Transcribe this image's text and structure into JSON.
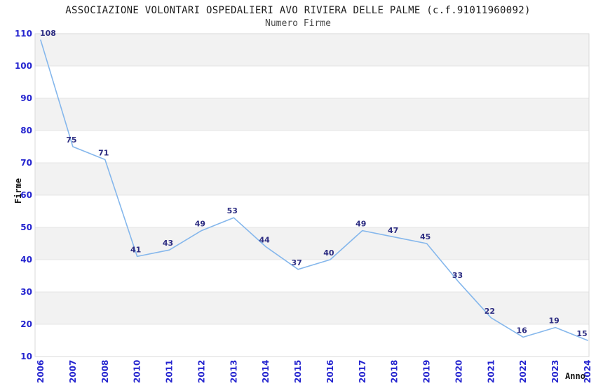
{
  "chart_data": {
    "type": "line",
    "title": "ASSOCIAZIONE VOLONTARI OSPEDALIERI AVO RIVIERA DELLE PALME (c.f.91011960092)",
    "subtitle": "Numero Firme",
    "xlabel": "Anno",
    "ylabel": "Firme",
    "categories": [
      "2006",
      "2007",
      "2008",
      "2010",
      "2011",
      "2012",
      "2013",
      "2014",
      "2015",
      "2016",
      "2017",
      "2018",
      "2019",
      "2020",
      "2021",
      "2022",
      "2023",
      "2024"
    ],
    "values": [
      108,
      75,
      71,
      41,
      43,
      49,
      53,
      44,
      37,
      40,
      49,
      47,
      45,
      33,
      22,
      16,
      19,
      15
    ],
    "yticks": [
      10,
      20,
      30,
      40,
      50,
      60,
      70,
      80,
      90,
      100,
      110
    ],
    "ylim": [
      10,
      110
    ],
    "grid": "horizontal-alternating-bands",
    "legend_position": "none",
    "data_labels_visible": true,
    "colors": {
      "line": "#85b7ec",
      "tick_label": "#2424cf",
      "data_label": "#2d2d82",
      "band_fill": "#f2f2f2",
      "plot_border": "#d9d9d9",
      "grid_line": "#e4e4e4",
      "plot_background": "#ffffff"
    }
  }
}
